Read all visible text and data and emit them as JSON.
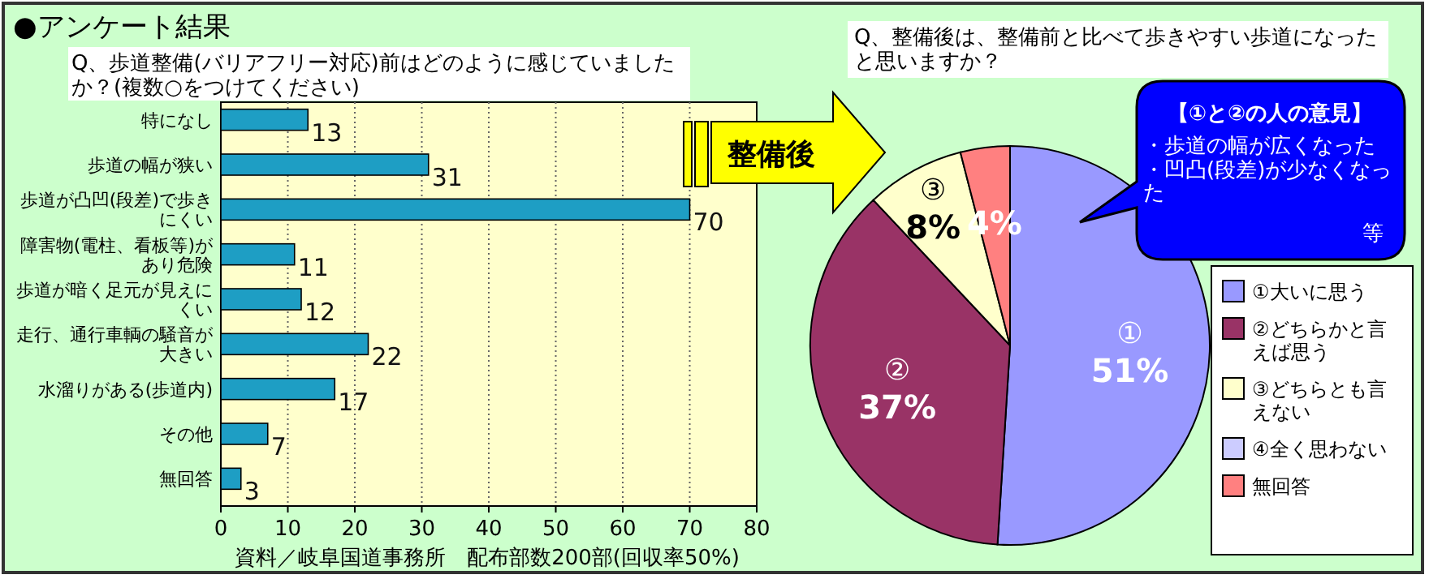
{
  "chart_data": [
    {
      "type": "bar",
      "orientation": "horizontal",
      "title": "●アンケート結果",
      "subtitle": "Q、歩道整備(バリアフリー対応)前はどのように感じていましたか？(複数○をつけてください)",
      "categories": [
        "特になし",
        "歩道の幅が狭い",
        "歩道が凸凹(段差)で歩きにくい",
        "障害物(電柱、看板等)があり危険",
        "歩道が暗く足元が見えにくい",
        "走行、通行車輌の騒音が大きい",
        "水溜りがある(歩道内)",
        "その他",
        "無回答"
      ],
      "values": [
        13,
        31,
        70,
        11,
        12,
        22,
        17,
        7,
        3
      ],
      "color": "#1e9ec4",
      "xlim": [
        0,
        80
      ],
      "xticks": [
        0,
        10,
        20,
        30,
        40,
        50,
        60,
        70,
        80
      ],
      "grid": "x",
      "data_labels": true,
      "annotations": [
        "資料／岐阜国道事務所　配布部数200部(回収率50%)"
      ]
    },
    {
      "type": "pie",
      "title": "Q、整備後は、整備前と比べて歩きやすい歩道になったと思いますか？",
      "categories": [
        "①大いに思う",
        "②どちらかと言えば思う",
        "③どちらとも言えない",
        "④全く思わない",
        "無回答"
      ],
      "values": [
        51,
        37,
        8,
        0,
        4
      ],
      "colors": [
        "#9999ff",
        "#993366",
        "#ffffcc",
        "#ccccff",
        "#ff8080"
      ],
      "value_labels": [
        "①\n51%",
        "②\n37%",
        "③\n8%",
        null,
        "4%"
      ],
      "legend": "right",
      "annotations": [
        "整備後",
        "【①と②の人の意見】",
        "・歩道の幅が広くなった",
        "・凹凸(段差)が少なくなった",
        "等"
      ]
    }
  ]
}
